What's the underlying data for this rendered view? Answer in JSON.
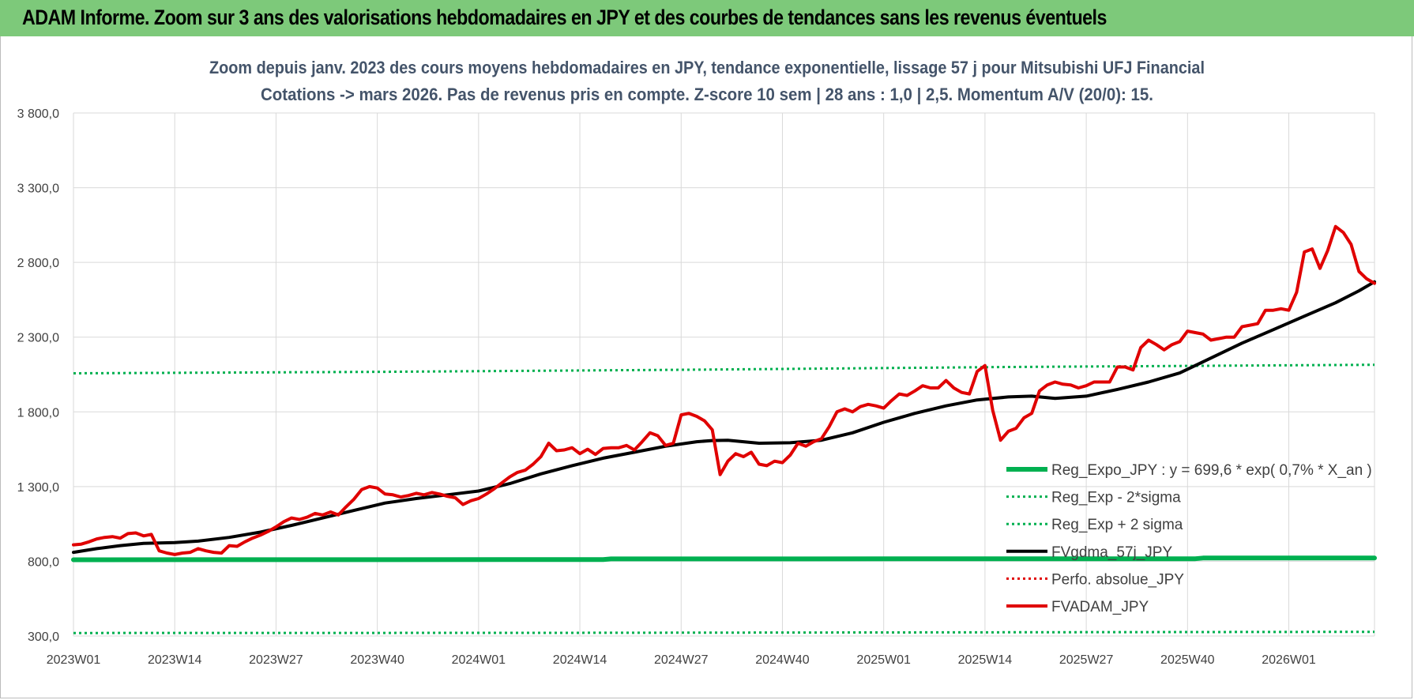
{
  "header": {
    "title": "ADAM Informe. Zoom sur 3 ans des valorisations hebdomadaires en JPY et des courbes de tendances sans les revenus éventuels",
    "background": "#7dc97a"
  },
  "chart_data": {
    "type": "line",
    "title_lines": [
      "Zoom depuis janv. 2023 des cours moyens hebdomadaires en JPY, tendance exponentielle, lissage 57 j pour Mitsubishi UFJ Financial",
      "Cotations -> mars 2026. Pas de revenus pris en compte. Z-score 10 sem | 28 ans : 1,0 | 2,5. Momentum A/V (20/0): 15."
    ],
    "xlabel": "",
    "ylabel": "",
    "ylim": [
      300,
      3800
    ],
    "yticks": [
      "300,0",
      "800,0",
      "1 300,0",
      "1 800,0",
      "2 300,0",
      "2 800,0",
      "3 300,0",
      "3 800,0"
    ],
    "x_tick_labels": [
      "2023W01",
      "2023W14",
      "2023W27",
      "2023W40",
      "2024W01",
      "2024W14",
      "2024W27",
      "2024W40",
      "2025W01",
      "2025W14",
      "2025W27",
      "2025W40",
      "2026W01"
    ],
    "x_tick_index": [
      0,
      13,
      26,
      39,
      52,
      65,
      78,
      91,
      104,
      117,
      130,
      143,
      156
    ],
    "n_weeks": 168,
    "grid": true,
    "legend_position": "bottom-right",
    "series": [
      {
        "name": "Reg_Expo_JPY : y = 699,6 * exp( 0,7% *  X_an )",
        "color": "#00b050",
        "style": "solid",
        "width": 6,
        "points": [
          [
            0,
            810
          ],
          [
            68,
            812
          ],
          [
            69,
            816
          ],
          [
            144,
            817
          ],
          [
            145,
            822
          ],
          [
            167,
            822
          ]
        ]
      },
      {
        "name": "Reg_Exp - 2*sigma",
        "color": "#00b050",
        "style": "dotted",
        "width": 3,
        "points": [
          [
            0,
            320
          ],
          [
            60,
            321
          ],
          [
            120,
            325
          ],
          [
            167,
            328
          ]
        ]
      },
      {
        "name": "Reg_Exp + 2 sigma",
        "color": "#00b050",
        "style": "dotted",
        "width": 3,
        "points": [
          [
            0,
            2058
          ],
          [
            40,
            2068
          ],
          [
            80,
            2082
          ],
          [
            120,
            2100
          ],
          [
            167,
            2115
          ]
        ]
      },
      {
        "name": "FVgdma_57j_JPY",
        "color": "#000000",
        "style": "solid",
        "width": 4,
        "points": [
          [
            0,
            860
          ],
          [
            3,
            885
          ],
          [
            6,
            905
          ],
          [
            9,
            920
          ],
          [
            13,
            925
          ],
          [
            16,
            935
          ],
          [
            20,
            960
          ],
          [
            24,
            995
          ],
          [
            28,
            1040
          ],
          [
            32,
            1090
          ],
          [
            36,
            1140
          ],
          [
            40,
            1190
          ],
          [
            44,
            1220
          ],
          [
            48,
            1245
          ],
          [
            52,
            1270
          ],
          [
            56,
            1320
          ],
          [
            60,
            1385
          ],
          [
            64,
            1440
          ],
          [
            68,
            1490
          ],
          [
            72,
            1530
          ],
          [
            76,
            1570
          ],
          [
            80,
            1600
          ],
          [
            82,
            1608
          ],
          [
            84,
            1610
          ],
          [
            86,
            1600
          ],
          [
            88,
            1590
          ],
          [
            92,
            1593
          ],
          [
            96,
            1610
          ],
          [
            100,
            1660
          ],
          [
            104,
            1730
          ],
          [
            108,
            1790
          ],
          [
            112,
            1840
          ],
          [
            116,
            1880
          ],
          [
            120,
            1900
          ],
          [
            123,
            1905
          ],
          [
            126,
            1890
          ],
          [
            130,
            1905
          ],
          [
            134,
            1950
          ],
          [
            138,
            2000
          ],
          [
            142,
            2060
          ],
          [
            146,
            2160
          ],
          [
            150,
            2260
          ],
          [
            154,
            2350
          ],
          [
            158,
            2440
          ],
          [
            162,
            2530
          ],
          [
            165,
            2610
          ],
          [
            167,
            2670
          ]
        ]
      },
      {
        "name": "Perfo. absolue_JPY",
        "color": "#e00000",
        "style": "dotted",
        "width": 3,
        "points": []
      },
      {
        "name": "FVADAM_JPY",
        "color": "#e00000",
        "style": "solid",
        "width": 4,
        "points": [
          [
            0,
            910
          ],
          [
            1,
            915
          ],
          [
            2,
            930
          ],
          [
            3,
            950
          ],
          [
            4,
            960
          ],
          [
            5,
            965
          ],
          [
            6,
            955
          ],
          [
            7,
            985
          ],
          [
            8,
            990
          ],
          [
            9,
            970
          ],
          [
            10,
            980
          ],
          [
            11,
            870
          ],
          [
            12,
            855
          ],
          [
            13,
            845
          ],
          [
            14,
            855
          ],
          [
            15,
            860
          ],
          [
            16,
            885
          ],
          [
            17,
            870
          ],
          [
            18,
            860
          ],
          [
            19,
            855
          ],
          [
            20,
            905
          ],
          [
            21,
            900
          ],
          [
            22,
            930
          ],
          [
            23,
            955
          ],
          [
            24,
            975
          ],
          [
            25,
            1000
          ],
          [
            26,
            1030
          ],
          [
            27,
            1065
          ],
          [
            28,
            1090
          ],
          [
            29,
            1080
          ],
          [
            30,
            1095
          ],
          [
            31,
            1120
          ],
          [
            32,
            1110
          ],
          [
            33,
            1130
          ],
          [
            34,
            1110
          ],
          [
            35,
            1165
          ],
          [
            36,
            1215
          ],
          [
            37,
            1280
          ],
          [
            38,
            1300
          ],
          [
            39,
            1290
          ],
          [
            40,
            1250
          ],
          [
            41,
            1245
          ],
          [
            42,
            1230
          ],
          [
            43,
            1240
          ],
          [
            44,
            1255
          ],
          [
            45,
            1245
          ],
          [
            46,
            1260
          ],
          [
            47,
            1250
          ],
          [
            48,
            1235
          ],
          [
            49,
            1225
          ],
          [
            50,
            1180
          ],
          [
            51,
            1205
          ],
          [
            52,
            1220
          ],
          [
            53,
            1250
          ],
          [
            54,
            1285
          ],
          [
            55,
            1325
          ],
          [
            56,
            1365
          ],
          [
            57,
            1395
          ],
          [
            58,
            1410
          ],
          [
            59,
            1450
          ],
          [
            60,
            1500
          ],
          [
            61,
            1590
          ],
          [
            62,
            1540
          ],
          [
            63,
            1545
          ],
          [
            64,
            1560
          ],
          [
            65,
            1520
          ],
          [
            66,
            1550
          ],
          [
            67,
            1515
          ],
          [
            68,
            1555
          ],
          [
            69,
            1560
          ],
          [
            70,
            1560
          ],
          [
            71,
            1575
          ],
          [
            72,
            1545
          ],
          [
            73,
            1600
          ],
          [
            74,
            1660
          ],
          [
            75,
            1640
          ],
          [
            76,
            1575
          ],
          [
            77,
            1590
          ],
          [
            78,
            1780
          ],
          [
            79,
            1790
          ],
          [
            80,
            1770
          ],
          [
            81,
            1740
          ],
          [
            82,
            1680
          ],
          [
            83,
            1380
          ],
          [
            84,
            1470
          ],
          [
            85,
            1520
          ],
          [
            86,
            1500
          ],
          [
            87,
            1530
          ],
          [
            88,
            1450
          ],
          [
            89,
            1440
          ],
          [
            90,
            1470
          ],
          [
            91,
            1460
          ],
          [
            92,
            1510
          ],
          [
            93,
            1590
          ],
          [
            94,
            1570
          ],
          [
            95,
            1600
          ],
          [
            96,
            1620
          ],
          [
            97,
            1700
          ],
          [
            98,
            1800
          ],
          [
            99,
            1820
          ],
          [
            100,
            1800
          ],
          [
            101,
            1835
          ],
          [
            102,
            1850
          ],
          [
            103,
            1840
          ],
          [
            104,
            1825
          ],
          [
            105,
            1875
          ],
          [
            106,
            1920
          ],
          [
            107,
            1910
          ],
          [
            108,
            1940
          ],
          [
            109,
            1975
          ],
          [
            110,
            1960
          ],
          [
            111,
            1960
          ],
          [
            112,
            2010
          ],
          [
            113,
            1960
          ],
          [
            114,
            1930
          ],
          [
            115,
            1920
          ],
          [
            116,
            2070
          ],
          [
            117,
            2110
          ],
          [
            118,
            1810
          ],
          [
            119,
            1610
          ],
          [
            120,
            1670
          ],
          [
            121,
            1690
          ],
          [
            122,
            1760
          ],
          [
            123,
            1790
          ],
          [
            124,
            1940
          ],
          [
            125,
            1980
          ],
          [
            126,
            2000
          ],
          [
            127,
            1985
          ],
          [
            128,
            1980
          ],
          [
            129,
            1960
          ],
          [
            130,
            1975
          ],
          [
            131,
            2000
          ],
          [
            132,
            2000
          ],
          [
            133,
            2000
          ],
          [
            134,
            2100
          ],
          [
            135,
            2100
          ],
          [
            136,
            2080
          ],
          [
            137,
            2230
          ],
          [
            138,
            2280
          ],
          [
            139,
            2250
          ],
          [
            140,
            2215
          ],
          [
            141,
            2250
          ],
          [
            142,
            2270
          ],
          [
            143,
            2340
          ],
          [
            144,
            2330
          ],
          [
            145,
            2320
          ],
          [
            146,
            2280
          ],
          [
            147,
            2290
          ],
          [
            148,
            2300
          ],
          [
            149,
            2300
          ],
          [
            150,
            2370
          ],
          [
            151,
            2380
          ],
          [
            152,
            2390
          ],
          [
            153,
            2480
          ],
          [
            154,
            2480
          ],
          [
            155,
            2490
          ],
          [
            156,
            2480
          ],
          [
            157,
            2600
          ],
          [
            158,
            2870
          ],
          [
            159,
            2890
          ],
          [
            160,
            2760
          ],
          [
            161,
            2880
          ],
          [
            162,
            3040
          ],
          [
            163,
            3000
          ],
          [
            164,
            2920
          ],
          [
            165,
            2740
          ],
          [
            166,
            2690
          ],
          [
            167,
            2660
          ]
        ]
      }
    ]
  }
}
